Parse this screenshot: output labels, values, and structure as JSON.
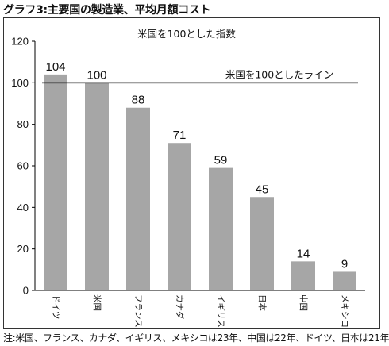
{
  "title": "グラフ3:主要国の製造業、平均月額コスト",
  "note": "注:米国、フランス、カナダ、イギリス、メキシコは23年、中国は22年、ドイツ、日本は21年",
  "chart_data": {
    "type": "bar",
    "title": "米国を100とした指数",
    "categories": [
      "ドイツ",
      "米国",
      "フランス",
      "カナダ",
      "イギリス",
      "日本",
      "中国",
      "メキシコ"
    ],
    "values": [
      104,
      100,
      88,
      71,
      59,
      45,
      14,
      9
    ],
    "ylim": [
      0,
      120
    ],
    "yticks": [
      0,
      20,
      40,
      60,
      80,
      100,
      120
    ],
    "bar_color": "#a6a6a6",
    "grid": false,
    "reference_line": {
      "value": 100,
      "label": "米国を100としたライン",
      "color": "#000000"
    }
  }
}
